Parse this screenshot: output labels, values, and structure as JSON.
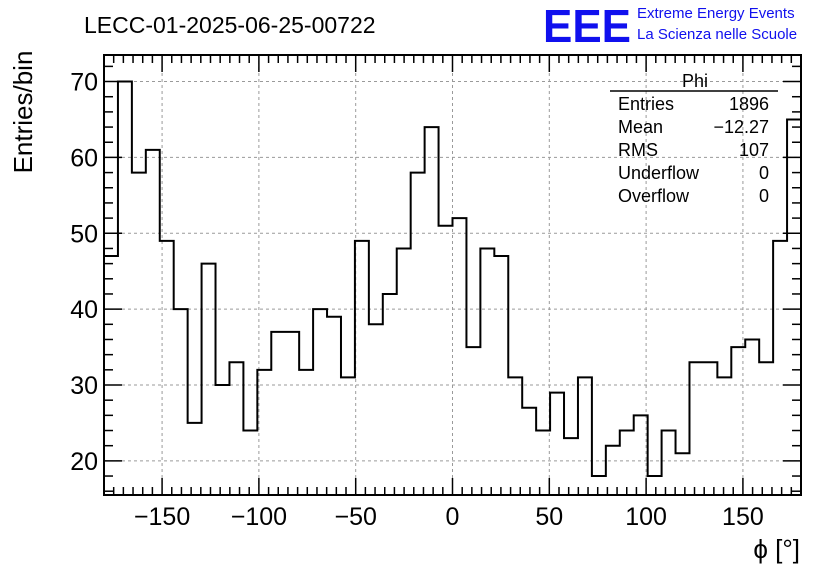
{
  "header": {
    "title": "LECC-01-2025-06-25-00722",
    "logo_text": "EEE",
    "logo_line1": "Extreme Energy Events",
    "logo_line2": "La Scienza nelle Scuole"
  },
  "colors": {
    "logo": "#1010ee",
    "histogram": "#000000",
    "grid": "#9a9a9a",
    "background": "#ffffff"
  },
  "stats": {
    "name": "Phi",
    "rows": [
      {
        "label": "Entries",
        "value": "1896"
      },
      {
        "label": "Mean",
        "value": "−12.27"
      },
      {
        "label": "RMS",
        "value": "107"
      },
      {
        "label": "Underflow",
        "value": "0"
      },
      {
        "label": "Overflow",
        "value": "0"
      }
    ]
  },
  "chart_data": {
    "type": "bar",
    "histogram": true,
    "title": "LECC-01-2025-06-25-00722",
    "xlabel": "ϕ [°]",
    "ylabel": "Entries/bin",
    "xlim": [
      -180,
      180
    ],
    "ylim": [
      15.5,
      73.5
    ],
    "bin_width": 7.2,
    "xticks": [
      -150,
      -100,
      -50,
      0,
      50,
      100,
      150
    ],
    "xtick_labels": [
      "−150",
      "−100",
      "−50",
      "0",
      "50",
      "100",
      "150"
    ],
    "yticks": [
      20,
      30,
      40,
      50,
      60,
      70
    ],
    "ytick_labels": [
      "20",
      "30",
      "40",
      "50",
      "60",
      "70"
    ],
    "grid": true,
    "legend": "top-right",
    "values": [
      47,
      70,
      58,
      61,
      49,
      40,
      25,
      46,
      30,
      33,
      24,
      32,
      37,
      37,
      32,
      40,
      39,
      31,
      49,
      38,
      42,
      48,
      58,
      64,
      51,
      52,
      35,
      48,
      47,
      31,
      27,
      24,
      29,
      23,
      31,
      18,
      22,
      24,
      26,
      18,
      24,
      21,
      33,
      33,
      31,
      35,
      36,
      33,
      49,
      65
    ]
  }
}
